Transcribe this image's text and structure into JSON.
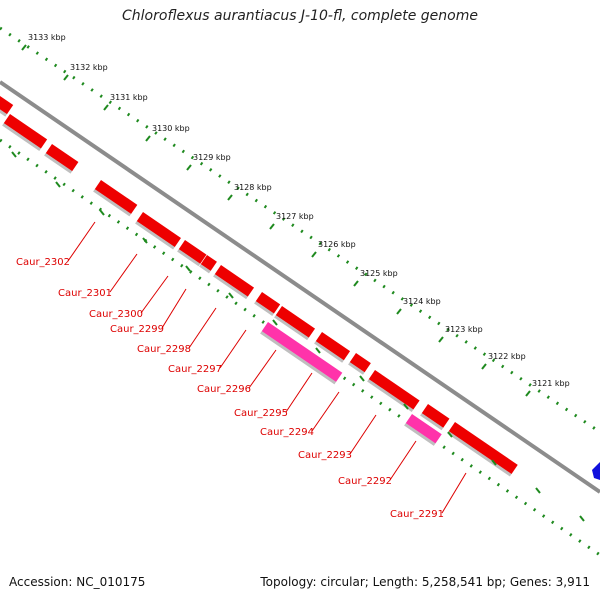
{
  "title": "Chloroflexus aurantiacus J-10-fl, complete genome",
  "accession": "Accession: NC_010175",
  "summary": "Topology: circular; Length: 5,258,541 bp; Genes: 3,911",
  "colors": {
    "backbone": "#8c8c8c",
    "kbp_ruler": "#1f8a1f",
    "gene_strand": "#ee0000",
    "gene_highlight": "#ff33aa",
    "gene_other": "#1010dd",
    "label": "#dd0000"
  },
  "kbp_ticks": [
    "3133 kbp",
    "3132 kbp",
    "3131 kbp",
    "3130 kbp",
    "3129 kbp",
    "3128 kbp",
    "3127 kbp",
    "3126 kbp",
    "3125 kbp",
    "3124 kbp",
    "3123 kbp",
    "3122 kbp",
    "3121 kbp"
  ],
  "gene_labels": [
    "Caur_2302",
    "Caur_2301",
    "Caur_2300",
    "Caur_2299",
    "Caur_2298",
    "Caur_2297",
    "Caur_2296",
    "Caur_2295",
    "Caur_2294",
    "Caur_2293",
    "Caur_2292",
    "Caur_2291"
  ]
}
